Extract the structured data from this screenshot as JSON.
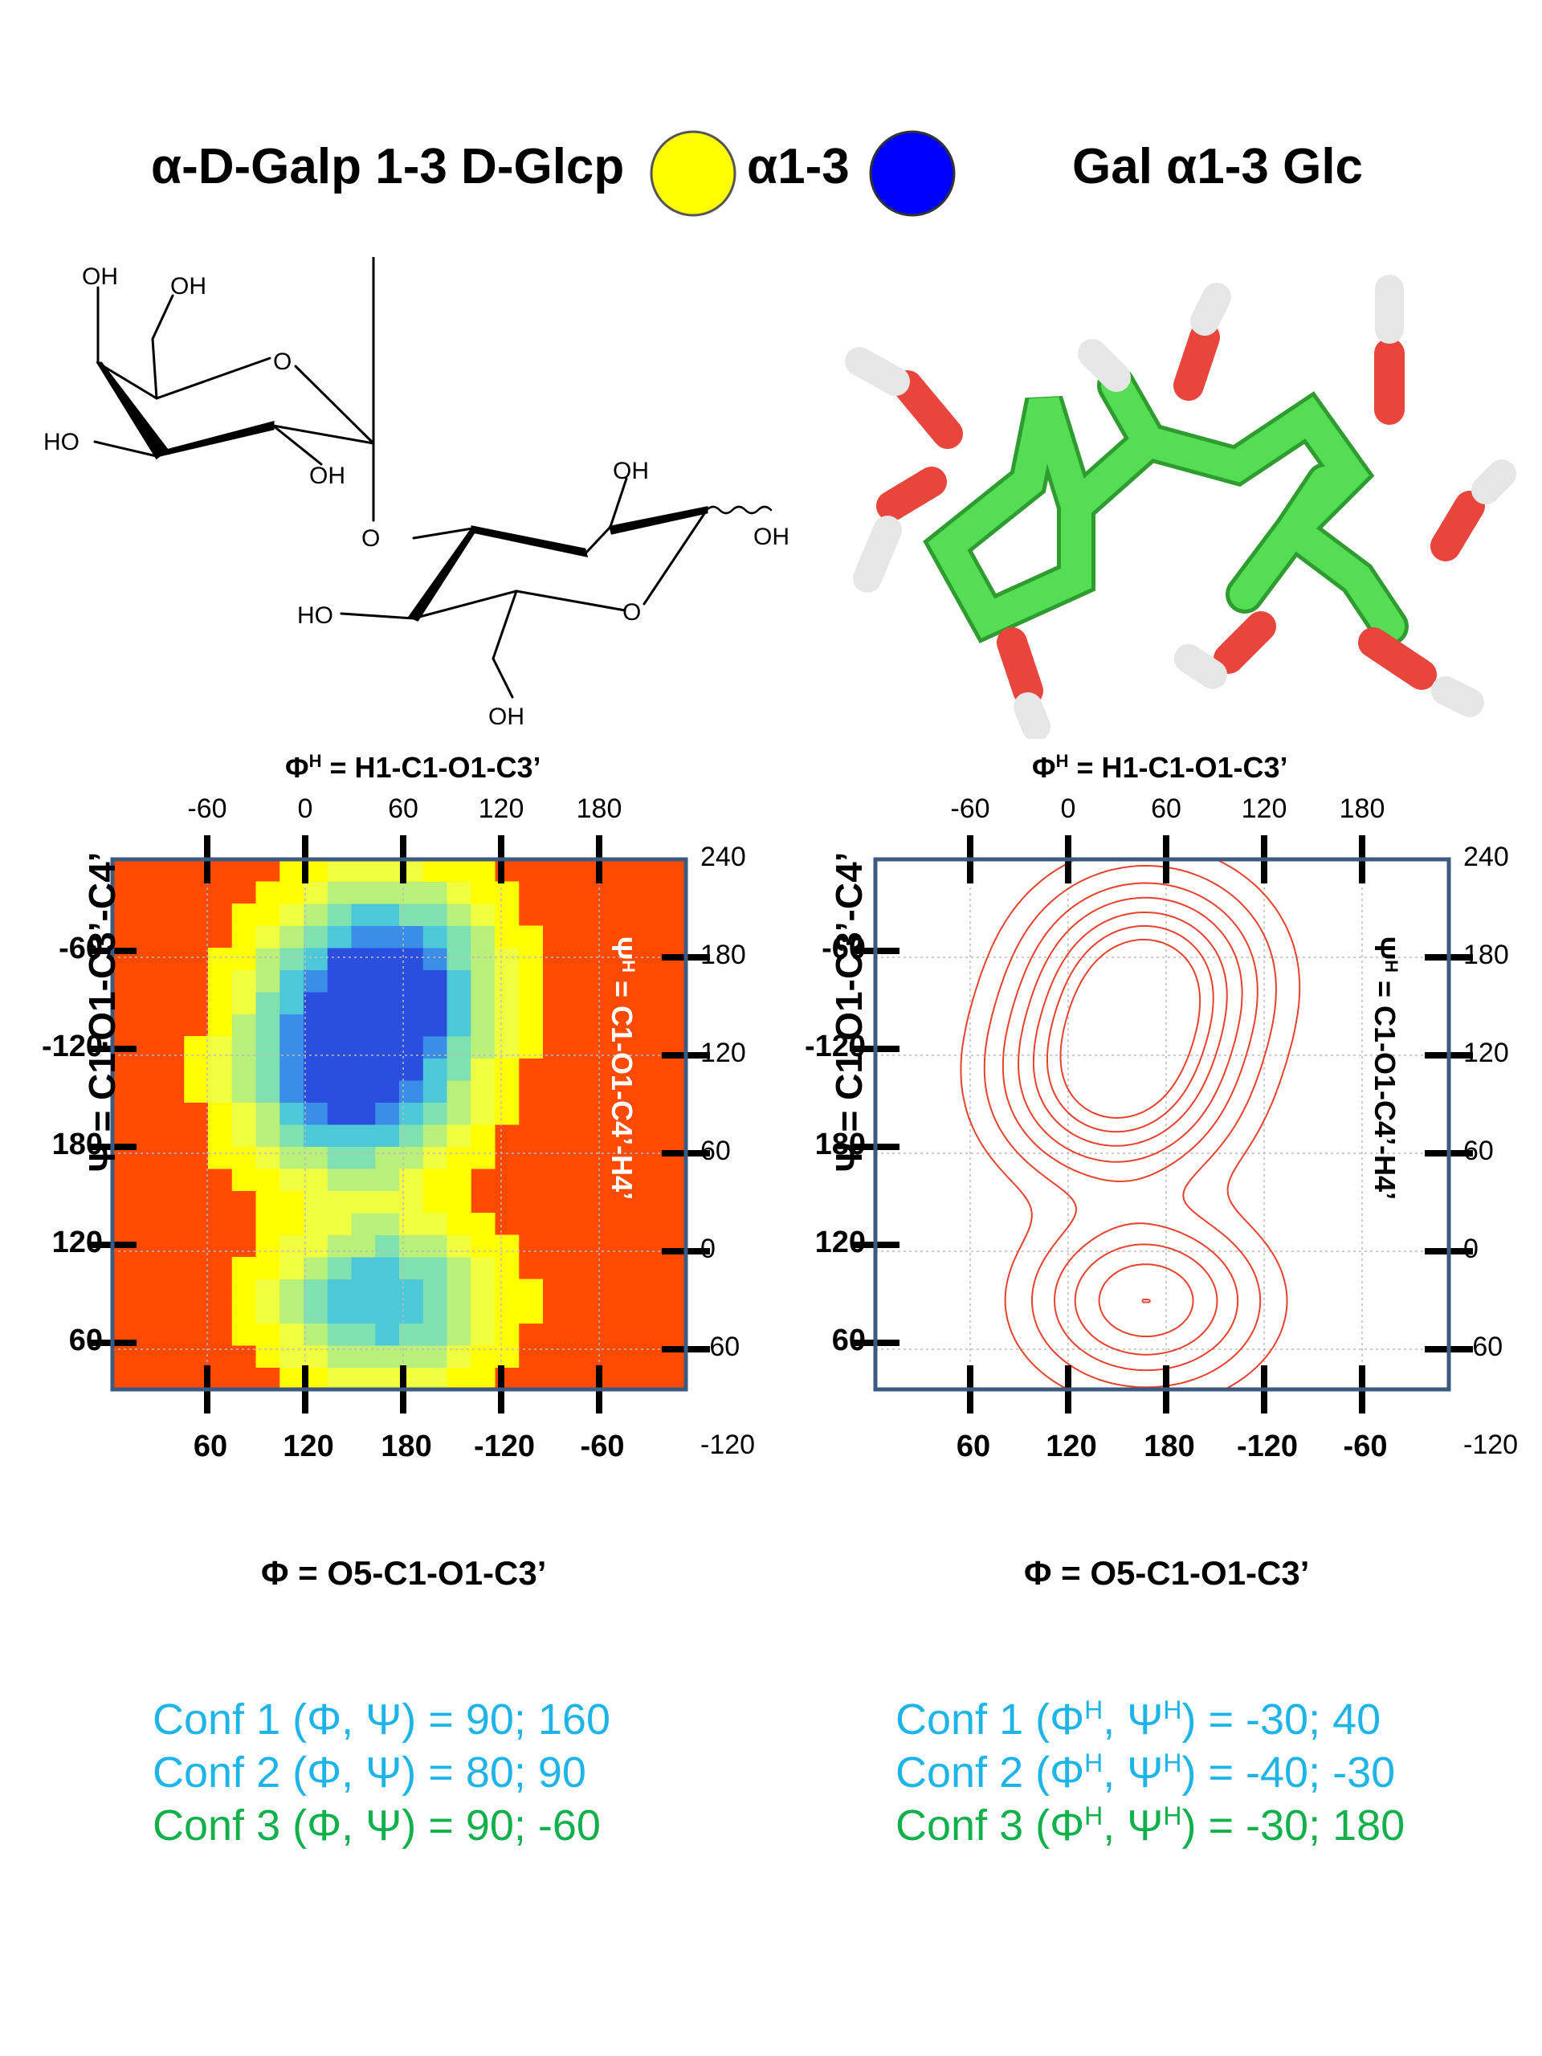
{
  "header": {
    "left_title": "α-D-Galp 1-3 D-Glcp",
    "linkage_label": "α1-3",
    "right_title": "Gal α1-3 Glc",
    "colors": {
      "galactose_circle": "#ffff00",
      "glucose_circle": "#0000ff"
    }
  },
  "structure_labels": {
    "oh": "OH",
    "ho": "HO",
    "o": "O"
  },
  "chart_data": [
    {
      "type": "heatmap",
      "top_axis_title": "ΦH = H1-C1-O1-C3’",
      "bottom_axis_title": "Φ = O5-C1-O1-C3’",
      "left_axis_title": "Ψ = C1-O1-C3’-C4’",
      "right_axis_title": "ΨH = C1-O1-C4’-H4’",
      "top_ticks": [
        "-60",
        "0",
        "60",
        "120",
        "180"
      ],
      "bottom_ticks": [
        "60",
        "120",
        "180",
        "-120",
        "-60"
      ],
      "left_ticks": [
        "-60",
        "-120",
        "180",
        "120",
        "60"
      ],
      "right_ticks": [
        "240",
        "180",
        "120",
        "60",
        "0",
        "-60",
        "-120"
      ],
      "xlim": [
        5,
        185
      ],
      "ylim": [
        -120,
        240
      ],
      "grid": true,
      "background_color": "#ff4a00",
      "density_peaks": [
        {
          "phi": 90,
          "psi": 160,
          "level": "high"
        },
        {
          "phi": 80,
          "psi": 90,
          "level": "high"
        },
        {
          "phi": 90,
          "psi": -60,
          "level": "medium"
        }
      ]
    },
    {
      "type": "contour",
      "top_axis_title": "ΦH = H1-C1-O1-C3’",
      "bottom_axis_title": "Φ = O5-C1-O1-C3’",
      "left_axis_title": "Ψ = C1-O1-C3’-C4’",
      "right_axis_title": "ΨH = C1-O1-C4’-H4’",
      "top_ticks": [
        "-60",
        "0",
        "60",
        "120",
        "180"
      ],
      "bottom_ticks": [
        "60",
        "120",
        "180",
        "-120",
        "-60"
      ],
      "left_ticks": [
        "-60",
        "-120",
        "180",
        "120",
        "60"
      ],
      "right_ticks": [
        "240",
        "180",
        "120",
        "60",
        "0",
        "-60",
        "-120"
      ],
      "xlim": [
        5,
        185
      ],
      "ylim": [
        -120,
        240
      ],
      "grid": true,
      "line_color": "#e8412e",
      "density_peaks": [
        {
          "phi": 90,
          "psi": 160,
          "level": "high"
        },
        {
          "phi": 80,
          "psi": 90,
          "level": "high"
        },
        {
          "phi": 90,
          "psi": -60,
          "level": "medium"
        }
      ]
    }
  ],
  "conformations_left": [
    {
      "text": "Conf 1 (Φ, Ψ) = 90; 160",
      "color": "#1fb4e8"
    },
    {
      "text": "Conf 2 (Φ, Ψ) = 80;  90",
      "color": "#1fb4e8"
    },
    {
      "text": "Conf 3 (Φ, Ψ) = 90; -60",
      "color": "#12b04a"
    }
  ],
  "conformations_right": [
    {
      "prefix": "Conf 1 (Φ",
      "mid": ", Ψ",
      "suffix": ") = -30;  40",
      "sup": "H",
      "color": "#1fb4e8"
    },
    {
      "prefix": "Conf 2 (Φ",
      "mid": ", Ψ",
      "suffix": ") = -40; -30",
      "sup": "H",
      "color": "#1fb4e8"
    },
    {
      "prefix": "Conf 3 (Φ",
      "mid": ", Ψ",
      "suffix": ") = -30; 180",
      "sup": "H",
      "color": "#12b04a"
    }
  ]
}
